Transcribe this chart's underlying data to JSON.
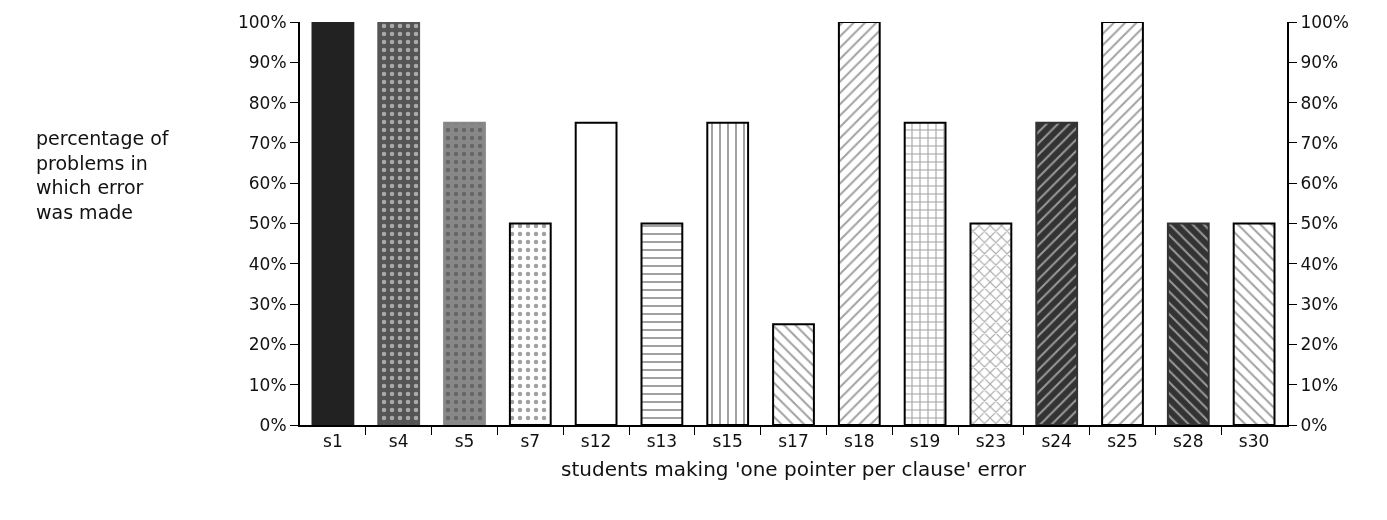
{
  "chart_data": {
    "type": "bar",
    "xlabel": "students making 'one pointer per clause' error",
    "ylabel": "percentage of\nproblems in\nwhich error\nwas made",
    "categories": [
      "s1",
      "s4",
      "s5",
      "s7",
      "s12",
      "s13",
      "s15",
      "s17",
      "s18",
      "s19",
      "s23",
      "s24",
      "s25",
      "s28",
      "s30"
    ],
    "values": [
      100,
      100,
      75,
      50,
      75,
      50,
      75,
      25,
      100,
      75,
      50,
      75,
      100,
      50,
      50
    ],
    "colors": [
      "#222222",
      "#555555",
      "#888888",
      "#000000",
      "#000000",
      "#000000",
      "#000000",
      "#000000",
      "#000000",
      "#000000",
      "#000000",
      "#333333",
      "#000000",
      "#333333",
      "#000000"
    ],
    "ylim": [
      0,
      100
    ],
    "yticks": [
      {
        "value": 0,
        "label": "0%"
      },
      {
        "value": 10,
        "label": "10%"
      },
      {
        "value": 20,
        "label": "20%"
      },
      {
        "value": 30,
        "label": "30%"
      },
      {
        "value": 40,
        "label": "40%"
      },
      {
        "value": 50,
        "label": "50%"
      },
      {
        "value": 60,
        "label": "60%"
      },
      {
        "value": 70,
        "label": "70%"
      },
      {
        "value": 80,
        "label": "80%"
      },
      {
        "value": 90,
        "label": "90%"
      },
      {
        "value": 100,
        "label": "100%"
      }
    ],
    "y2lim": [
      0,
      100
    ],
    "y2ticks": [
      {
        "value": 0,
        "label": "0%"
      },
      {
        "value": 10,
        "label": "10%"
      },
      {
        "value": 20,
        "label": "20%"
      },
      {
        "value": 30,
        "label": "30%"
      },
      {
        "value": 40,
        "label": "40%"
      },
      {
        "value": 50,
        "label": "50%"
      },
      {
        "value": 60,
        "label": "60%"
      },
      {
        "value": 70,
        "label": "70%"
      },
      {
        "value": 80,
        "label": "80%"
      },
      {
        "value": 90,
        "label": "90%"
      },
      {
        "value": 100,
        "label": "100%"
      }
    ]
  }
}
